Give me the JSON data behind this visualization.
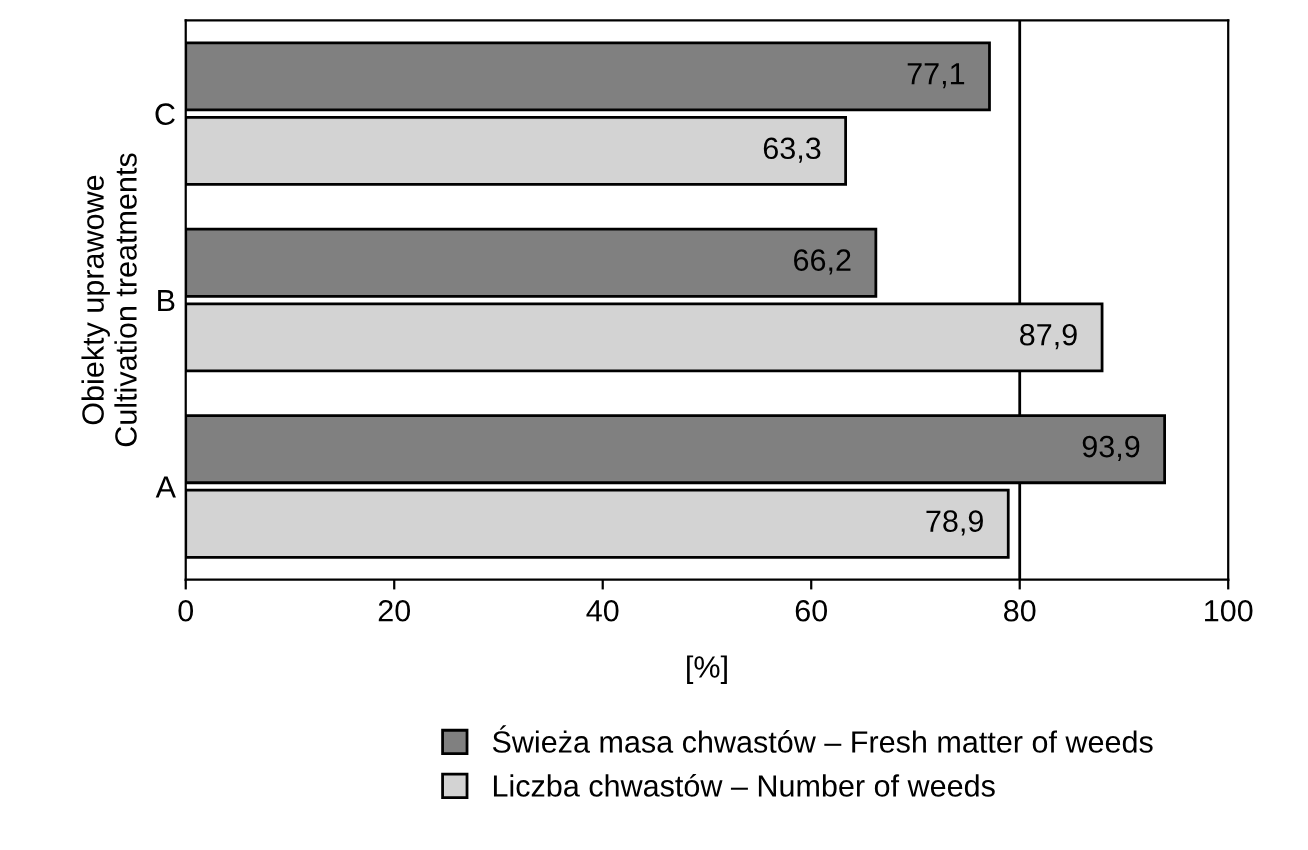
{
  "chart_data": {
    "type": "bar",
    "orientation": "horizontal",
    "xlabel": "[%]",
    "ylabel": "Obiekty uprawowe\nCultivation treatments",
    "categories": [
      "C",
      "B",
      "A"
    ],
    "series": [
      {
        "name": "Świeża masa chwastów – Fresh matter of weeds",
        "color": "#808080",
        "values": [
          77.1,
          66.2,
          93.9
        ],
        "value_labels": [
          "77,1",
          "66,2",
          "93,9"
        ]
      },
      {
        "name": "Liczba chwastów – Number of weeds",
        "color": "#d3d3d3",
        "values": [
          63.3,
          87.9,
          78.9
        ],
        "value_labels": [
          "63,3",
          "87,9",
          "78,9"
        ]
      }
    ],
    "xlim": [
      0,
      100
    ],
    "xticks": [
      0,
      20,
      40,
      60,
      80,
      100
    ],
    "ref_lines": [
      {
        "axis": "x",
        "value": 80,
        "label": null,
        "color": "#000000"
      }
    ],
    "legend": "bottom",
    "grid": false
  }
}
